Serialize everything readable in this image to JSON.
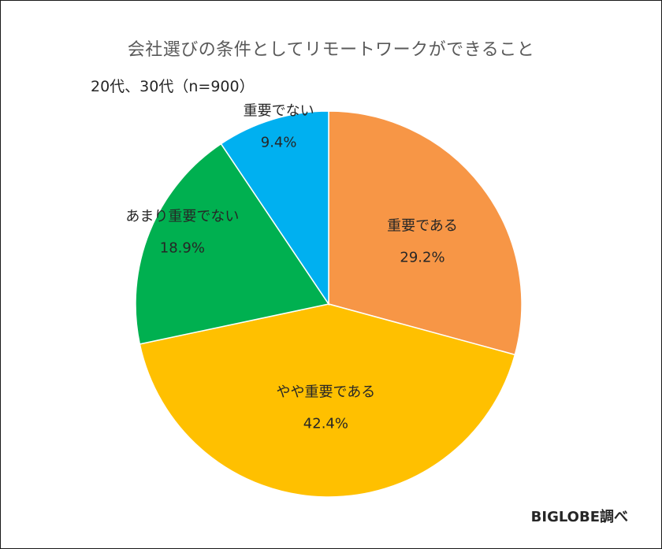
{
  "chart_data": {
    "type": "pie",
    "title": "会社選びの条件としてリモートワークができること",
    "subtitle": "20代、30代（n=900）",
    "source": "BIGLOBE調べ",
    "unit": "%",
    "slices": [
      {
        "label": "重要である",
        "value": 29.2,
        "display": "29.2%",
        "color": "#F79646"
      },
      {
        "label": "やや重要である",
        "value": 42.4,
        "display": "42.4%",
        "color": "#FFC000"
      },
      {
        "label": "あまり重要でない",
        "value": 18.9,
        "display": "18.9%",
        "color": "#00B050"
      },
      {
        "label": "重要でない",
        "value": 9.4,
        "display": "9.4%",
        "color": "#00B0F0"
      }
    ],
    "start_angle": "12 o'clock",
    "direction": "clockwise",
    "legend": "none"
  }
}
